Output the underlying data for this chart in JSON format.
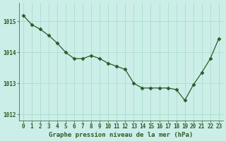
{
  "x": [
    0,
    1,
    2,
    3,
    4,
    5,
    6,
    7,
    8,
    9,
    10,
    11,
    12,
    13,
    14,
    15,
    16,
    17,
    18,
    19,
    20,
    21,
    22,
    23
  ],
  "y": [
    1015.2,
    1014.9,
    1014.75,
    1014.55,
    1014.3,
    1014.0,
    1013.8,
    1013.8,
    1013.9,
    1013.8,
    1013.65,
    1013.55,
    1013.45,
    1013.0,
    1012.85,
    1012.85,
    1012.85,
    1012.85,
    1012.8,
    1012.45,
    1012.95,
    1013.35,
    1013.8,
    1014.45
  ],
  "line_color": "#2d5a27",
  "marker": "D",
  "marker_size": 2.5,
  "background_color": "#cceee8",
  "grid_color": "#aaddcc",
  "xlabel": "Graphe pression niveau de la mer (hPa)",
  "xlabel_fontsize": 6.5,
  "xlabel_color": "#2d5a27",
  "tick_color": "#2d5a27",
  "tick_fontsize": 5.5,
  "ylim": [
    1011.8,
    1015.6
  ],
  "xlim": [
    -0.5,
    23.5
  ],
  "yticks": [
    1012,
    1013,
    1014,
    1015
  ],
  "xticks": [
    0,
    1,
    2,
    3,
    4,
    5,
    6,
    7,
    8,
    9,
    10,
    11,
    12,
    13,
    14,
    15,
    16,
    17,
    18,
    19,
    20,
    21,
    22,
    23
  ]
}
